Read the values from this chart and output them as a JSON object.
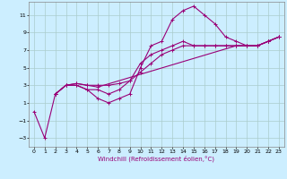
{
  "xlabel": "Windchill (Refroidissement éolien,°C)",
  "bg_color": "#cceeff",
  "grid_color": "#aacccc",
  "line_color": "#990077",
  "xlim": [
    -0.5,
    23.5
  ],
  "ylim": [
    -4,
    12.5
  ],
  "xticks": [
    0,
    1,
    2,
    3,
    4,
    5,
    6,
    7,
    8,
    9,
    10,
    11,
    12,
    13,
    14,
    15,
    16,
    17,
    18,
    19,
    20,
    21,
    22,
    23
  ],
  "yticks": [
    -3,
    -1,
    1,
    3,
    5,
    7,
    9,
    11
  ],
  "lines": [
    {
      "x": [
        0,
        1,
        2,
        3,
        4,
        5,
        6,
        7,
        8,
        9,
        10,
        11,
        12,
        13,
        14,
        15,
        16,
        17,
        18,
        19,
        20,
        21,
        22,
        23
      ],
      "y": [
        0.0,
        -3.0,
        2.0,
        3.0,
        3.0,
        2.5,
        1.5,
        1.0,
        1.5,
        2.0,
        5.0,
        7.5,
        8.0,
        10.5,
        11.5,
        12.0,
        11.0,
        10.0,
        8.5,
        8.0,
        7.5,
        7.5,
        8.0,
        8.5
      ]
    },
    {
      "x": [
        2,
        3,
        4,
        5,
        6,
        7,
        8,
        9,
        10,
        11,
        12,
        13,
        14,
        15,
        16,
        17,
        18,
        19,
        20,
        21,
        22,
        23
      ],
      "y": [
        2.0,
        3.0,
        3.0,
        2.5,
        2.5,
        2.0,
        2.5,
        3.5,
        5.5,
        6.5,
        7.0,
        7.5,
        8.0,
        7.5,
        7.5,
        7.5,
        7.5,
        7.5,
        7.5,
        7.5,
        8.0,
        8.5
      ]
    },
    {
      "x": [
        2,
        3,
        4,
        5,
        6,
        7,
        8,
        9,
        10,
        11,
        12,
        13,
        14,
        15,
        16,
        17,
        18,
        19,
        20,
        21,
        22,
        23
      ],
      "y": [
        2.0,
        3.0,
        3.2,
        3.0,
        3.0,
        3.0,
        3.2,
        3.5,
        4.5,
        5.5,
        6.5,
        7.0,
        7.5,
        7.5,
        7.5,
        7.5,
        7.5,
        7.5,
        7.5,
        7.5,
        8.0,
        8.5
      ]
    },
    {
      "x": [
        2,
        3,
        4,
        5,
        6,
        19,
        20,
        21,
        22,
        23
      ],
      "y": [
        2.0,
        3.0,
        3.2,
        3.0,
        2.8,
        7.5,
        7.5,
        7.5,
        8.0,
        8.5
      ]
    }
  ]
}
